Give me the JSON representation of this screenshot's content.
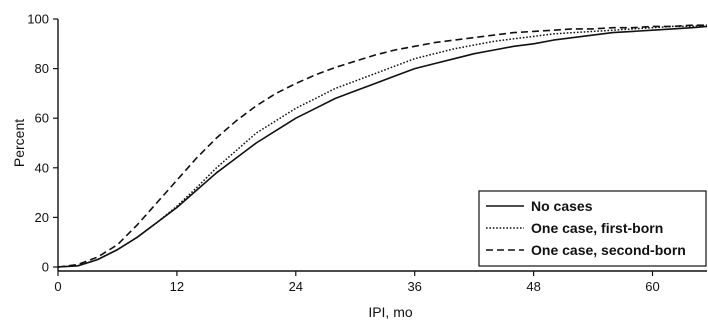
{
  "chart_data": {
    "type": "line",
    "xlabel": "IPI, mo",
    "ylabel": "Percent",
    "xlim": [
      0,
      65.5
    ],
    "ylim": [
      0,
      100
    ],
    "xticks": [
      "0",
      "12",
      "24",
      "36",
      "48",
      "60"
    ],
    "yticks": [
      "0",
      "20",
      "40",
      "60",
      "80",
      "100"
    ],
    "grid": false,
    "legend_position": "bottom-right",
    "series": [
      {
        "name": "No cases",
        "dash": "solid",
        "x": [
          0,
          2,
          4,
          6,
          8,
          10,
          12,
          14,
          16,
          18,
          20,
          22,
          24,
          26,
          28,
          30,
          32,
          34,
          36,
          38,
          40,
          42,
          44,
          46,
          48,
          50,
          52,
          54,
          56,
          58,
          60,
          62,
          64,
          65.5
        ],
        "y": [
          0,
          0.5,
          3,
          7,
          12,
          18,
          24,
          31,
          38,
          44,
          50,
          55,
          60,
          64,
          68,
          71,
          74,
          77,
          80,
          82,
          84,
          86,
          87.5,
          89,
          90,
          91.5,
          92.5,
          93.5,
          94.5,
          95,
          95.5,
          96,
          96.5,
          97
        ]
      },
      {
        "name": "One case, first-born",
        "dash": "dotted",
        "x": [
          0,
          2,
          4,
          6,
          8,
          10,
          12,
          14,
          16,
          18,
          20,
          22,
          24,
          26,
          28,
          30,
          32,
          34,
          36,
          38,
          40,
          42,
          44,
          46,
          48,
          50,
          52,
          54,
          56,
          58,
          60,
          62,
          64,
          65.5
        ],
        "y": [
          0,
          0.5,
          3,
          7,
          12,
          18,
          24.5,
          32,
          40,
          47,
          54,
          59,
          64,
          68,
          72,
          75,
          78,
          81,
          84,
          86,
          88,
          89.5,
          91,
          92,
          93,
          94,
          94.5,
          95,
          95.5,
          96,
          96.5,
          97,
          97,
          97.5
        ]
      },
      {
        "name": "One case, second-born",
        "dash": "dashed",
        "x": [
          0,
          2,
          4,
          6,
          8,
          10,
          12,
          14,
          16,
          18,
          20,
          22,
          24,
          26,
          28,
          30,
          32,
          34,
          36,
          38,
          40,
          42,
          44,
          46,
          48,
          50,
          52,
          54,
          56,
          58,
          60,
          62,
          64,
          65.5
        ],
        "y": [
          0,
          1,
          4,
          9,
          17,
          26,
          35,
          44,
          52,
          59,
          65,
          70,
          74,
          77.5,
          80.5,
          83,
          85.5,
          87.5,
          89,
          90.5,
          91.5,
          92.5,
          93.5,
          94.5,
          95,
          95.5,
          96,
          96,
          96.5,
          96.5,
          97,
          97,
          97.5,
          97.5
        ]
      }
    ]
  }
}
